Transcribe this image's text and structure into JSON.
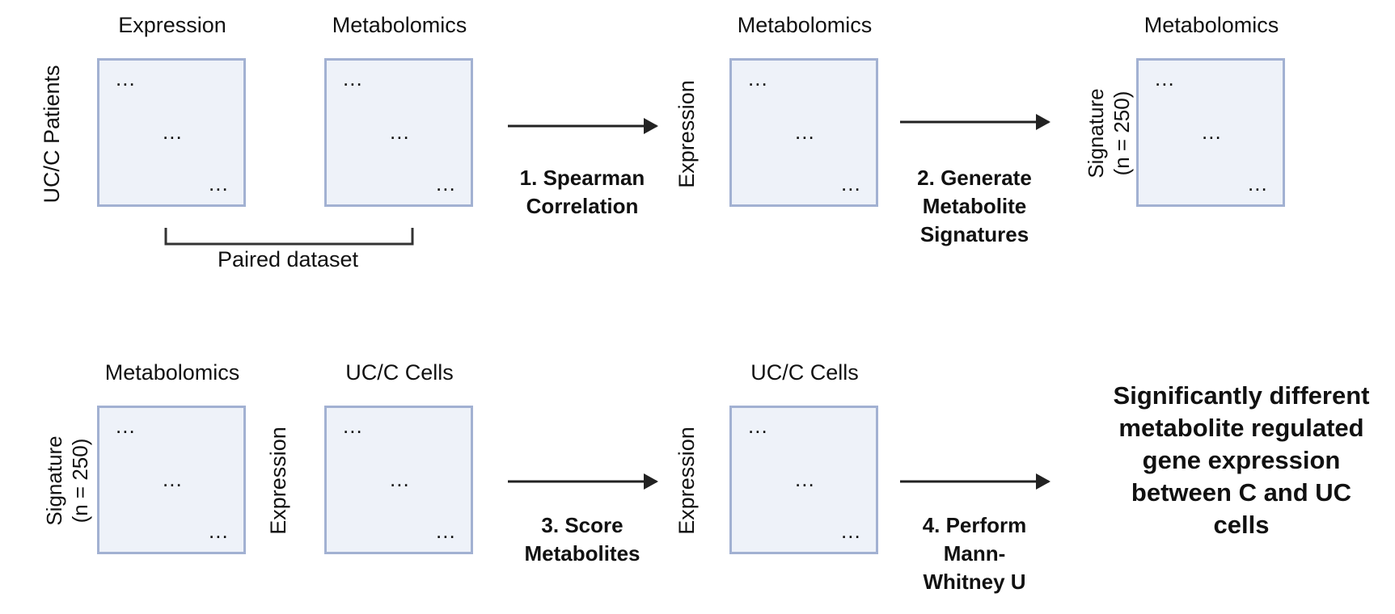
{
  "row1": {
    "expression_title": "Expression",
    "metabolomics_title": "Metabolomics",
    "patients_label": "UC/C Patients",
    "paired_label": "Paired dataset",
    "step1": "1.  Spearman Correlation",
    "corr_title": "Metabolomics",
    "corr_row_label": "Expression",
    "step2": "2. Generate Metabolite Signatures",
    "sig_title": "Metabolomics",
    "sig_row_label": "Signature\n(n = 250)"
  },
  "row2": {
    "metabolomics_title": "Metabolomics",
    "cells_title": "UC/C Cells",
    "sig_row_label": "Signature\n(n = 250)",
    "expression_row_label": "Expression",
    "step3": "3. Score Metabolites",
    "score_title": "UC/C Cells",
    "score_row_label": "Expression",
    "step4": "4. Perform Mann-Whitney U",
    "result": "Significantly different metabolite regulated gene expression between C and UC cells"
  },
  "matrix_dots": "...",
  "colors": {
    "matrix_fill": "#eef2f9",
    "matrix_border": "#a2b1d2",
    "arrow": "#222222"
  }
}
